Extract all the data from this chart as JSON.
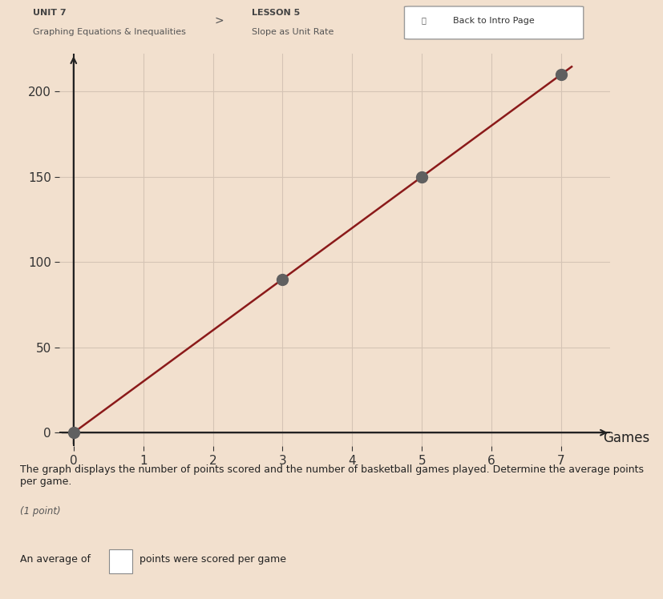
{
  "line_x": [
    0,
    7.15
  ],
  "line_y": [
    0,
    214.5
  ],
  "highlighted_points": [
    [
      0,
      0
    ],
    [
      3,
      90
    ],
    [
      5,
      150
    ],
    [
      7,
      210
    ]
  ],
  "point_color": "#606060",
  "line_color": "#8B1A1A",
  "plot_bg_color": "#F2E0CE",
  "page_bg_color": "#F2E0CE",
  "header_bg_color": "#EAD8C8",
  "bottom_bg_color": "#F5F0EC",
  "grid_color": "#D5C4B5",
  "axis_color": "#222222",
  "text_color": "#222222",
  "xlabel": "Games",
  "yticks": [
    0,
    50,
    100,
    150,
    200
  ],
  "xticks": [
    0,
    1,
    2,
    3,
    4,
    5,
    6,
    7
  ],
  "xlim": [
    -0.2,
    7.7
  ],
  "ylim": [
    -8,
    222
  ],
  "header_text1": "UNIT 7",
  "header_text2": "Graphing Equations & Inequalities",
  "header_arrow": ">",
  "header_text3": "LESSON 5",
  "header_text4": "Slope as Unit Rate",
  "header_btn": "Back to Intro Page",
  "body_text1": "The graph displays the number of points scored and the number of basketball games played. Determine the average points per game.",
  "body_text2": "(1 point)",
  "body_text3": "An average of",
  "body_text4": "points were scored per game",
  "point_size": 100,
  "line_width": 1.8,
  "tick_fontsize": 11,
  "axis_label_fontsize": 12,
  "body_fontsize": 9,
  "header_fontsize": 8
}
